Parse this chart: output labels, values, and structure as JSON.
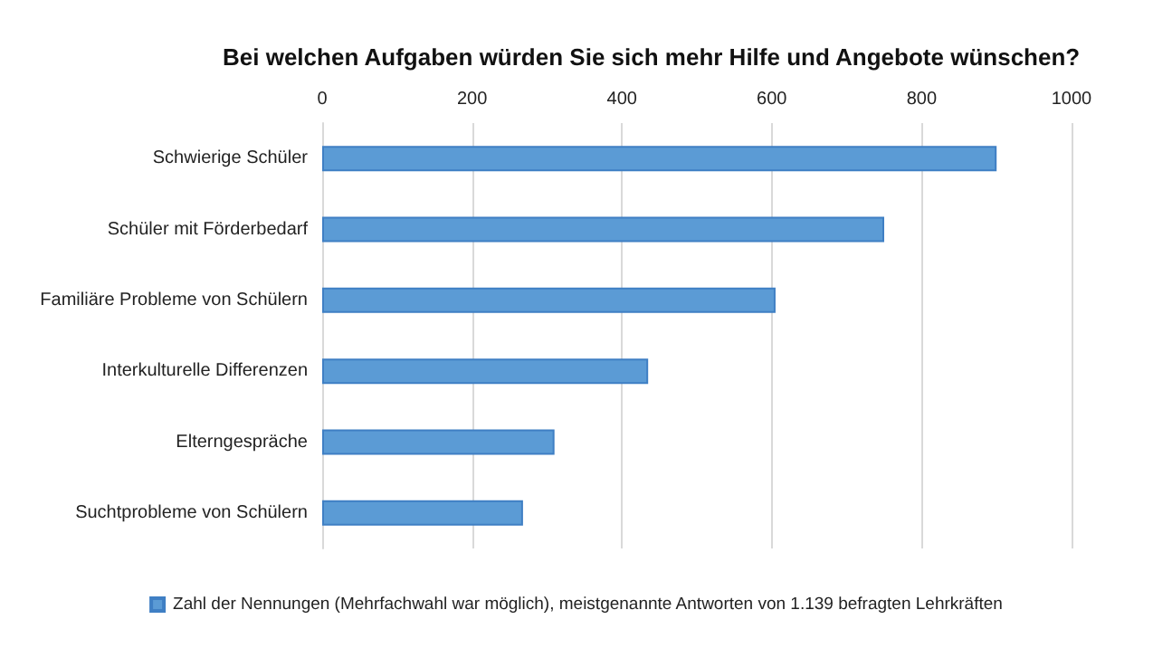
{
  "chart_data": {
    "type": "bar",
    "orientation": "horizontal",
    "title": "Bei welchen Aufgaben würden Sie sich mehr Hilfe und Angebote wünschen?",
    "categories": [
      "Schwierige Schüler",
      "Schüler mit Förderbedarf",
      "Familiäre Probleme von Schülern",
      "Interkulturelle Differenzen",
      "Elterngespräche",
      "Suchtprobleme von Schülern"
    ],
    "series": [
      {
        "name": "Zahl der Nennungen (Mehrfachwahl war möglich), meistgenannte Antworten von 1.139 befragten Lehrkräften",
        "color": "#5b9bd5",
        "values": [
          900,
          750,
          605,
          435,
          310,
          268
        ]
      }
    ],
    "xlim": [
      0,
      1000
    ],
    "xticks": [
      0,
      200,
      400,
      600,
      800,
      1000
    ],
    "grid": "x",
    "legend": "bottom"
  }
}
